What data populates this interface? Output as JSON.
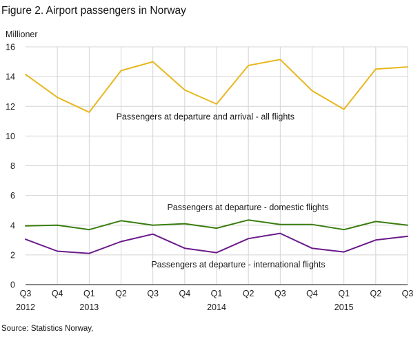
{
  "chart_data": {
    "type": "line",
    "title": "Figure 2. Airport passengers in Norway",
    "ylabel": "Millioner",
    "xlabel": "",
    "source": "Source: Statistics Norway,",
    "ylim": [
      0,
      16
    ],
    "yticks": [
      0,
      2,
      4,
      6,
      8,
      10,
      12,
      14,
      16
    ],
    "grid": true,
    "categories": [
      "Q3",
      "Q4",
      "Q1",
      "Q2",
      "Q3",
      "Q4",
      "Q1",
      "Q2",
      "Q3",
      "Q4",
      "Q1",
      "Q2",
      "Q3"
    ],
    "years": [
      {
        "label": "2012",
        "index": 0
      },
      {
        "label": "2013",
        "index": 2
      },
      {
        "label": "2014",
        "index": 6
      },
      {
        "label": "2015",
        "index": 10
      }
    ],
    "series": [
      {
        "name": "Passengers  at departure  and  arrival  - all flights",
        "color": "#e8b71e",
        "values": [
          14.15,
          12.6,
          11.6,
          14.4,
          15.0,
          13.1,
          12.15,
          14.75,
          15.15,
          13.05,
          11.8,
          14.5,
          14.65
        ],
        "label_anchor": {
          "index": 2.85,
          "value": 11.1
        }
      },
      {
        "name": "Passengers  at departure  - domestic flights",
        "color": "#3a7d10",
        "values": [
          3.95,
          4.0,
          3.7,
          4.3,
          4.0,
          4.1,
          3.8,
          4.35,
          4.05,
          4.05,
          3.7,
          4.25,
          4.0
        ],
        "label_anchor": {
          "index": 4.45,
          "value": 5.0
        }
      },
      {
        "name": "Passengers  at departure  - international flights",
        "color": "#6a1a8a",
        "values": [
          3.05,
          2.25,
          2.1,
          2.9,
          3.4,
          2.45,
          2.15,
          3.1,
          3.45,
          2.45,
          2.2,
          3.0,
          3.25
        ],
        "label_anchor": {
          "index": 3.95,
          "value": 1.15
        }
      }
    ]
  }
}
